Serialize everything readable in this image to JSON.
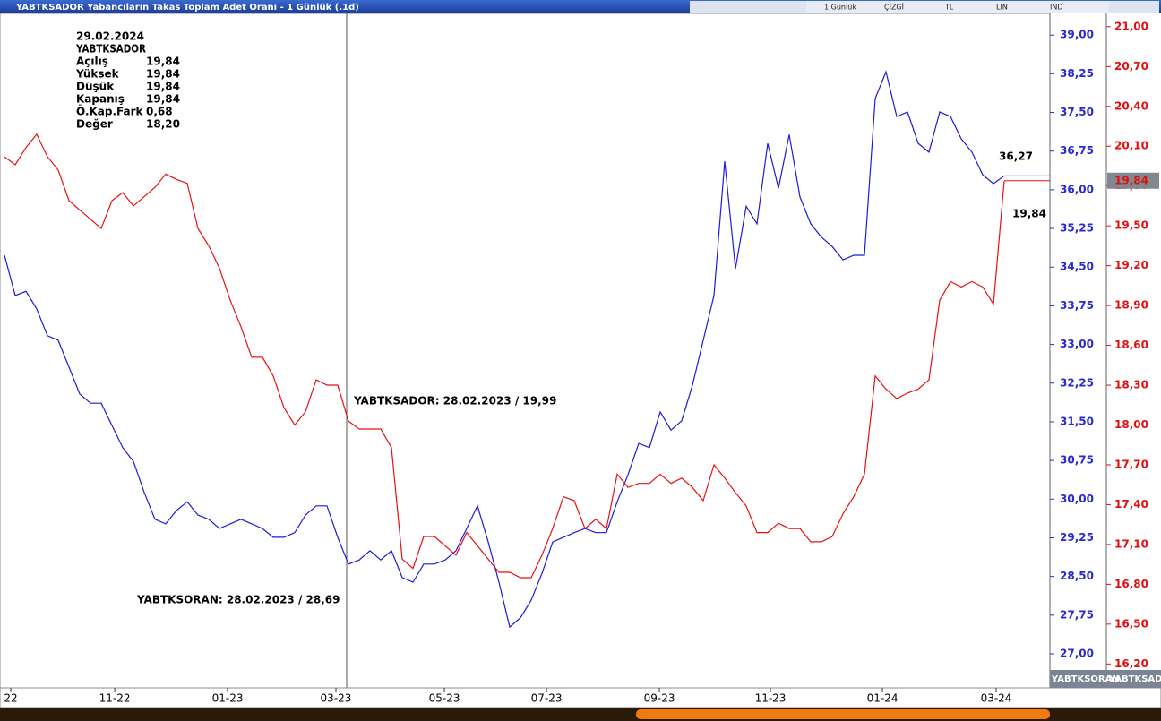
{
  "title": "YABTKSADOR Yabancıların Takas Toplam Adet Oranı - 1 Günlük (.1d)",
  "toolbar": [
    "1 Günlük",
    "ÇİZGİ",
    "TL",
    "LIN",
    "IND"
  ],
  "info": {
    "date": "29.02.2024",
    "symbol": "YABTKSADOR",
    "rows": [
      [
        "Açılış",
        "19,84"
      ],
      [
        "Yüksek",
        "19,84"
      ],
      [
        "Düşük",
        "19,84"
      ],
      [
        "Kapanış",
        "19,84"
      ],
      [
        "Ö.Kap.Fark",
        "0,68"
      ],
      [
        "Değer",
        "18,20"
      ]
    ]
  },
  "chart_data": {
    "type": "line",
    "annotations": [
      "YABTKSADOR: 28.02.2023 / 19,99",
      "YABTKSORAN: 28.02.2023 / 28,69"
    ],
    "last_labels": [
      "36,27",
      "19,84"
    ],
    "xlim": [
      -0.42,
      97.25
    ],
    "xticks": [
      {
        "value": 0.58,
        "label": "22"
      },
      {
        "value": 10.25,
        "label": "11-22"
      },
      {
        "value": 20.75,
        "label": "01-23"
      },
      {
        "value": 30.83,
        "label": "03-23"
      },
      {
        "value": 40.92,
        "label": "05-23"
      },
      {
        "value": 50.42,
        "label": "07-23"
      },
      {
        "value": 60.92,
        "label": "09-23"
      },
      {
        "value": 71.25,
        "label": "11-23"
      },
      {
        "value": 81.67,
        "label": "01-24"
      },
      {
        "value": 92.25,
        "label": "03-24"
      }
    ],
    "ylim": [
      26.34,
      39.42
    ],
    "yticks": [
      {
        "value": 27,
        "label": "27,00"
      },
      {
        "value": 27.75,
        "label": "27,75"
      },
      {
        "value": 28.5,
        "label": "28,50"
      },
      {
        "value": 29.25,
        "label": "29,25"
      },
      {
        "value": 30,
        "label": "30,00"
      },
      {
        "value": 30.75,
        "label": "30,75"
      },
      {
        "value": 31.5,
        "label": "31,50"
      },
      {
        "value": 32.25,
        "label": "32,25"
      },
      {
        "value": 33,
        "label": "33,00"
      },
      {
        "value": 33.75,
        "label": "33,75"
      },
      {
        "value": 34.5,
        "label": "34,50"
      },
      {
        "value": 35.25,
        "label": "35,25"
      },
      {
        "value": 36,
        "label": "36,00"
      },
      {
        "value": 36.75,
        "label": "36,75"
      },
      {
        "value": 37.5,
        "label": "37,50"
      },
      {
        "value": 38.25,
        "label": "38,25"
      },
      {
        "value": 39,
        "label": "39,00"
      }
    ],
    "y2lim": [
      16.02,
      21.1
    ],
    "y2ticks": [
      {
        "value": 16.2,
        "label": "16,20"
      },
      {
        "value": 16.5,
        "label": "16,50"
      },
      {
        "value": 16.8,
        "label": "16,80"
      },
      {
        "value": 17.1,
        "label": "17,10"
      },
      {
        "value": 17.4,
        "label": "17,40"
      },
      {
        "value": 17.7,
        "label": "17,70"
      },
      {
        "value": 18,
        "label": "18,00"
      },
      {
        "value": 18.3,
        "label": "18,30"
      },
      {
        "value": 18.6,
        "label": "18,60"
      },
      {
        "value": 18.9,
        "label": "18,90"
      },
      {
        "value": 19.2,
        "label": "19,20"
      },
      {
        "value": 19.5,
        "label": "19,50"
      },
      {
        "value": 19.8,
        "label": "19,80"
      },
      {
        "value": 20.1,
        "label": "20,10"
      },
      {
        "value": 20.4,
        "label": "20,40"
      },
      {
        "value": 20.7,
        "label": "20,70"
      },
      {
        "value": 21,
        "label": "21,00"
      }
    ],
    "y2_badge": "19,84",
    "series": [
      {
        "name": "YABTKSORAN",
        "color": "#1a1adc",
        "values": [
          34.73,
          33.95,
          34.03,
          33.69,
          33.17,
          33.08,
          32.56,
          32.04,
          31.86,
          31.86,
          31.43,
          31.0,
          30.73,
          30.13,
          29.61,
          29.52,
          29.78,
          29.95,
          29.69,
          29.61,
          29.43,
          29.52,
          29.61,
          29.52,
          29.43,
          29.26,
          29.26,
          29.35,
          29.69,
          29.87,
          29.87,
          29.26,
          28.74,
          28.82,
          29.0,
          28.82,
          29.0,
          28.48,
          28.39,
          28.74,
          28.74,
          28.82,
          29.0,
          29.43,
          29.87,
          29.17,
          28.39,
          27.52,
          27.7,
          28.04,
          28.56,
          29.17,
          29.26,
          29.35,
          29.43,
          29.35,
          29.35,
          29.95,
          30.47,
          31.08,
          31.0,
          31.69,
          31.34,
          31.52,
          32.21,
          33.08,
          33.95,
          36.55,
          34.47,
          35.68,
          35.34,
          36.9,
          36.03,
          37.07,
          35.86,
          35.34,
          35.08,
          34.9,
          34.64,
          34.73,
          34.73,
          37.77,
          38.29,
          37.42,
          37.51,
          36.9,
          36.73,
          37.51,
          37.42,
          36.99,
          36.73,
          36.29,
          36.12,
          36.27
        ]
      },
      {
        "name": "YABTKSADOR",
        "color": "#e81010",
        "axis": "y2",
        "values": [
          20.02,
          19.96,
          20.09,
          20.19,
          20.02,
          19.92,
          19.69,
          19.62,
          19.55,
          19.48,
          19.69,
          19.75,
          19.65,
          19.72,
          19.79,
          19.89,
          19.85,
          19.82,
          19.48,
          19.35,
          19.18,
          18.94,
          18.74,
          18.51,
          18.51,
          18.37,
          18.13,
          18.0,
          18.1,
          18.34,
          18.3,
          18.3,
          18.03,
          17.97,
          17.97,
          17.97,
          17.83,
          16.99,
          16.92,
          17.16,
          17.16,
          17.09,
          17.02,
          17.19,
          17.09,
          16.99,
          16.89,
          16.89,
          16.85,
          16.85,
          17.02,
          17.22,
          17.46,
          17.43,
          17.22,
          17.29,
          17.22,
          17.63,
          17.53,
          17.56,
          17.56,
          17.63,
          17.56,
          17.6,
          17.53,
          17.43,
          17.7,
          17.6,
          17.49,
          17.39,
          17.19,
          17.19,
          17.26,
          17.22,
          17.22,
          17.12,
          17.12,
          17.16,
          17.33,
          17.46,
          17.63,
          18.37,
          18.27,
          18.2,
          18.24,
          18.27,
          18.34,
          18.94,
          19.08,
          19.04,
          19.08,
          19.04,
          18.91,
          19.84
        ]
      }
    ]
  }
}
